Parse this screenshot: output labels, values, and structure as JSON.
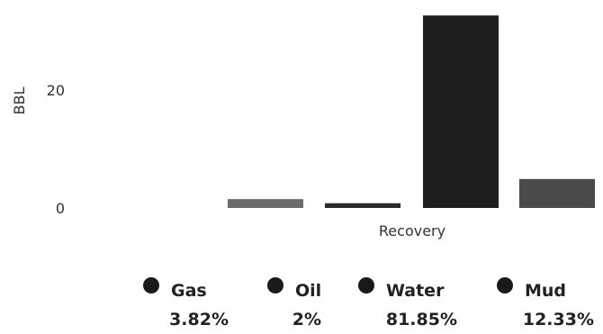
{
  "chart_data": {
    "type": "bar",
    "ylabel": "BBL",
    "xlabel": "Recovery",
    "ylim": [
      0,
      34
    ],
    "yticks": [
      0,
      20
    ],
    "grid": false,
    "legend_position": "bottom",
    "series": [
      {
        "name": "Gas",
        "value": 1.5,
        "percent": "3.82%",
        "color": "#6b6b6b"
      },
      {
        "name": "Oil",
        "value": 0.8,
        "percent": "2%",
        "color": "#2a2a2a"
      },
      {
        "name": "Water",
        "value": 32.6,
        "percent": "81.85%",
        "color": "#1f1f1f"
      },
      {
        "name": "Mud",
        "value": 4.9,
        "percent": "12.33%",
        "color": "#4a4a4a"
      }
    ]
  }
}
